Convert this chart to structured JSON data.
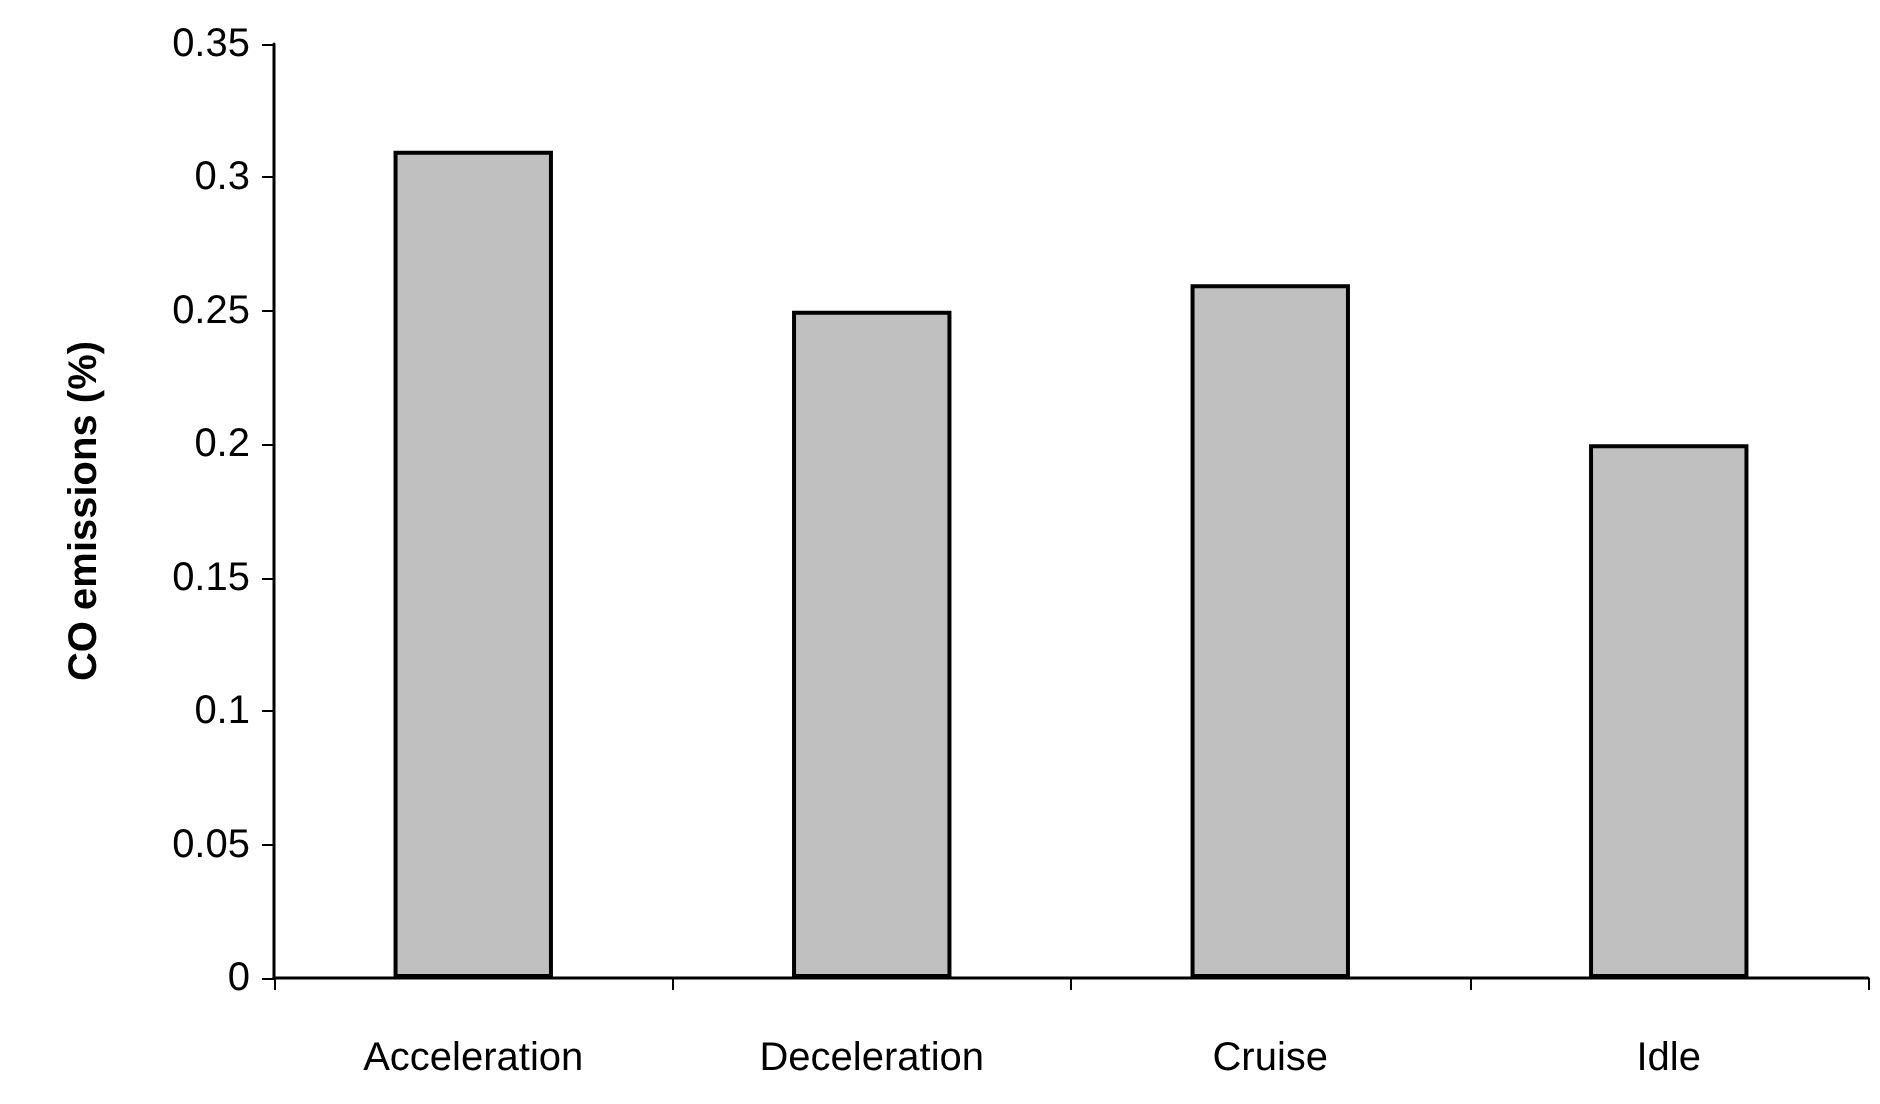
{
  "chart_data": {
    "type": "bar",
    "ylabel": "CO emissions (%)",
    "categories": [
      "Acceleration",
      "Deceleration",
      "Cruise",
      "Idle"
    ],
    "values": [
      0.31,
      0.25,
      0.26,
      0.2
    ],
    "color": "#c0c0c0",
    "ylim": [
      0,
      0.35
    ],
    "yticks": [
      0,
      0.05,
      0.1,
      0.15,
      0.2,
      0.25,
      0.3,
      0.35
    ],
    "grid": false
  }
}
